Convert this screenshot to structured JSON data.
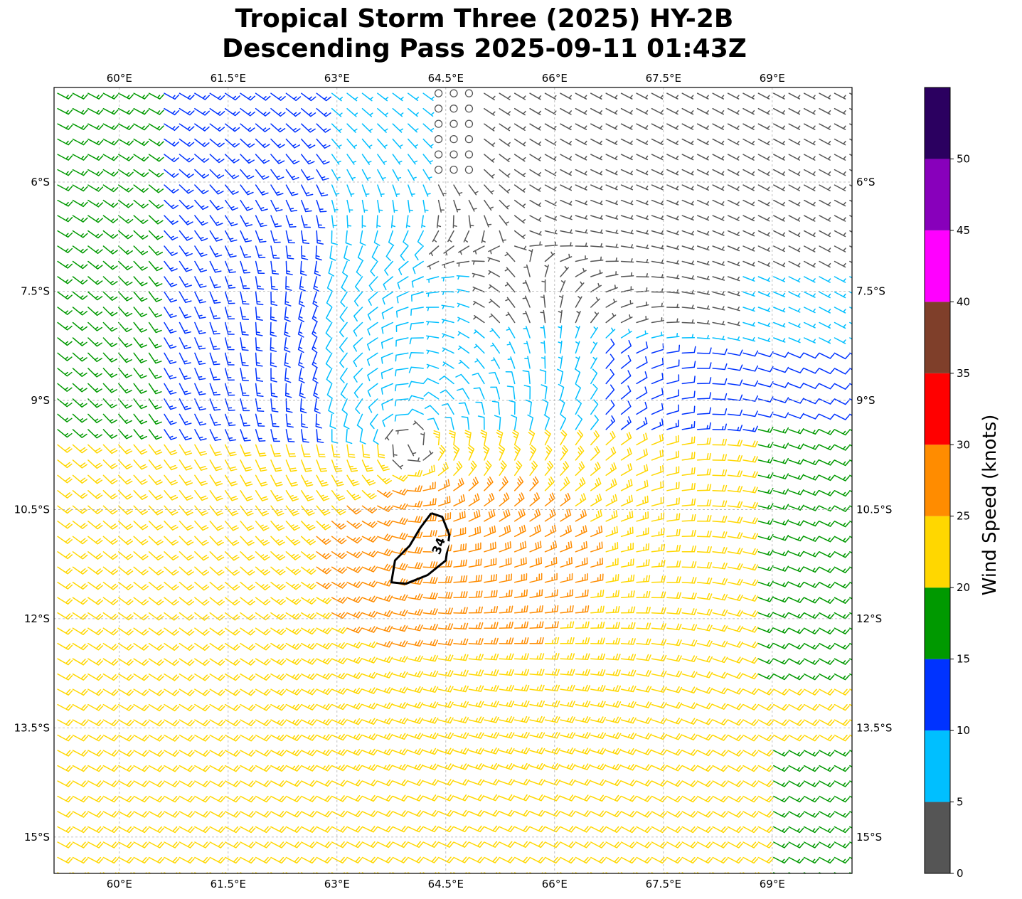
{
  "title_line1": "Tropical Storm Three (2025) HY-2B",
  "title_line2": "Descending Pass 2025-09-11 01:43Z",
  "map": {
    "lon_ticks": [
      "60°E",
      "61.5°E",
      "63°E",
      "64.5°E",
      "66°E",
      "67.5°E",
      "69°E"
    ],
    "lon_values": [
      60,
      61.5,
      63,
      64.5,
      66,
      67.5,
      69
    ],
    "lat_ticks": [
      "6°S",
      "7.5°S",
      "9°S",
      "10.5°S",
      "12°S",
      "13.5°S",
      "15°S"
    ],
    "lat_values": [
      -6,
      -7.5,
      -9,
      -10.5,
      -12,
      -13.5,
      -15
    ],
    "lon_range": [
      59.1,
      70.1
    ],
    "lat_range": [
      -15.5,
      -4.7
    ],
    "grid": true,
    "storm_center": {
      "lon": 64.0,
      "lat": -9.6
    },
    "contour_label": "34",
    "contour": [
      [
        64.3,
        -10.55
      ],
      [
        64.45,
        -10.6
      ],
      [
        64.55,
        -10.85
      ],
      [
        64.5,
        -11.2
      ],
      [
        64.25,
        -11.4
      ],
      [
        63.95,
        -11.52
      ],
      [
        63.75,
        -11.5
      ],
      [
        63.8,
        -11.2
      ],
      [
        64.0,
        -11.0
      ],
      [
        64.15,
        -10.75
      ],
      [
        64.3,
        -10.55
      ]
    ]
  },
  "colorbar": {
    "label": "Wind Speed (knots)",
    "ticks": [
      "0",
      "5",
      "10",
      "15",
      "20",
      "25",
      "30",
      "35",
      "40",
      "45",
      "50"
    ],
    "tick_values": [
      0,
      5,
      10,
      15,
      20,
      25,
      30,
      35,
      40,
      45,
      50
    ],
    "bins": [
      {
        "min": 0,
        "max": 5,
        "color": "#555555"
      },
      {
        "min": 5,
        "max": 10,
        "color": "#00bfff"
      },
      {
        "min": 10,
        "max": 15,
        "color": "#0033ff"
      },
      {
        "min": 15,
        "max": 20,
        "color": "#009900"
      },
      {
        "min": 20,
        "max": 25,
        "color": "#ffd700"
      },
      {
        "min": 25,
        "max": 30,
        "color": "#ff8c00"
      },
      {
        "min": 30,
        "max": 35,
        "color": "#ff0000"
      },
      {
        "min": 35,
        "max": 40,
        "color": "#7f3f2a"
      },
      {
        "min": 40,
        "max": 45,
        "color": "#ff00ff"
      },
      {
        "min": 45,
        "max": 50,
        "color": "#8800bb"
      },
      {
        "min": 50,
        "max": 55,
        "color": "#2b0060"
      }
    ],
    "max": 55
  }
}
